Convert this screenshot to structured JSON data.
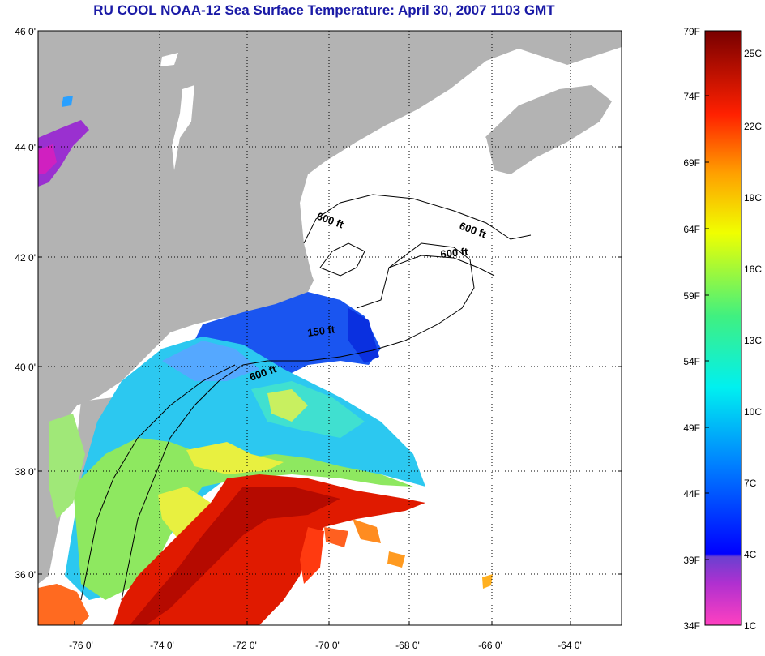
{
  "title": "RU COOL  NOAA-12  Sea Surface Temperature:  April 30, 2007 1103 GMT",
  "map": {
    "lat_labels": [
      "46 0'",
      "44 0'",
      "42 0'",
      "40 0'",
      "38 0'",
      "36 0'"
    ],
    "lon_labels": [
      "-76 0'",
      "-74 0'",
      "-72 0'",
      "-70 0'",
      "-68 0'",
      "-66 0'",
      "-64 0'"
    ],
    "contour_labels": [
      "600 ft",
      "600 ft",
      "600 ft",
      "150 ft",
      "600 ft"
    ],
    "land_color": "#b3b3b3",
    "cloud_color": "#ffffff",
    "grid": "dotted"
  },
  "colorbar": {
    "fahrenheit": [
      "79F",
      "74F",
      "69F",
      "64F",
      "59F",
      "54F",
      "49F",
      "44F",
      "39F",
      "34F"
    ],
    "celsius": [
      "25C",
      "22C",
      "19C",
      "16C",
      "13C",
      "10C",
      "7C",
      "4C",
      "1C"
    ],
    "colors": [
      "#ff40c0",
      "#9a30d0",
      "#1010ff",
      "#0090ff",
      "#00e8f0",
      "#40f080",
      "#ffff00",
      "#ff9900",
      "#ff2200",
      "#800000"
    ]
  }
}
